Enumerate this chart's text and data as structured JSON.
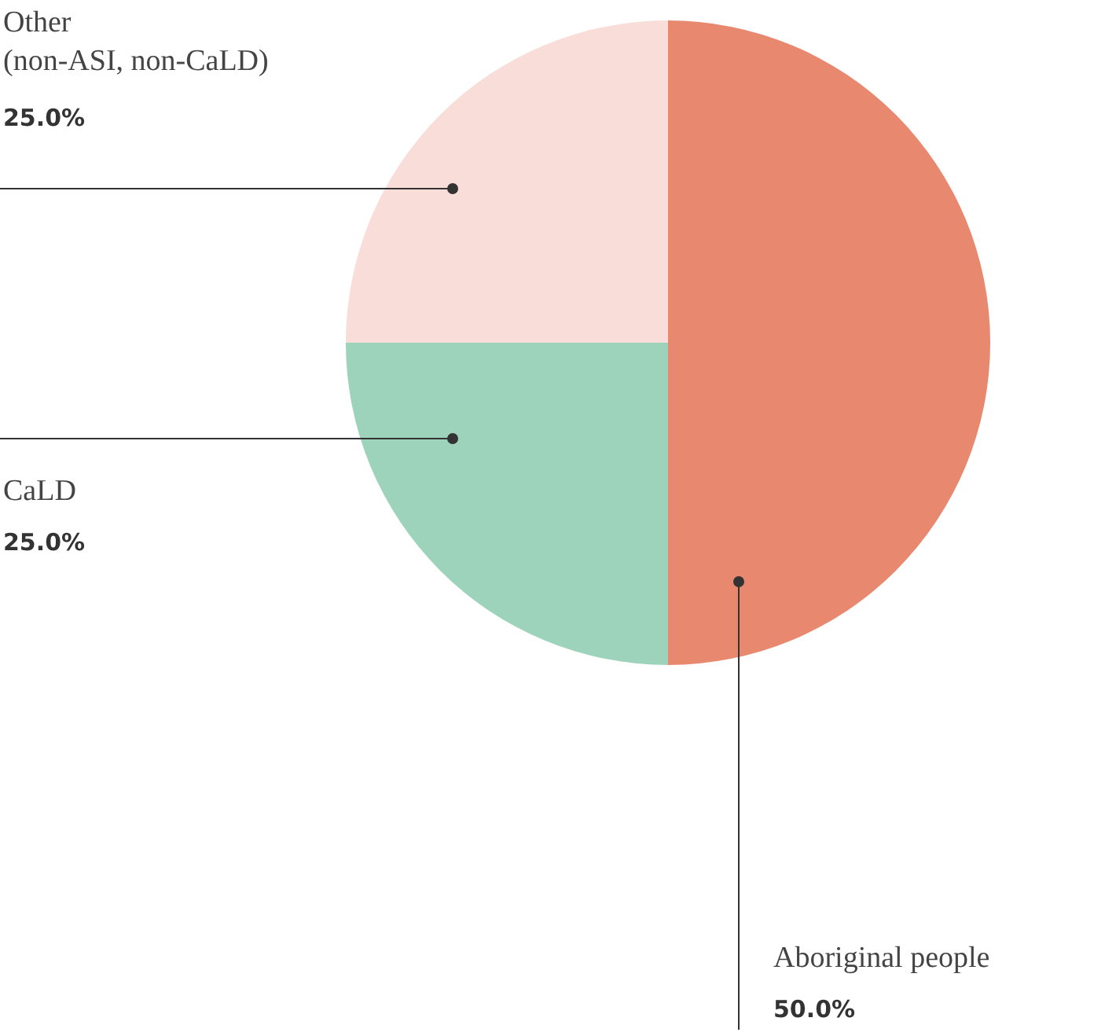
{
  "chart_data": {
    "type": "pie",
    "categories": [
      "Aboriginal people",
      "CaLD",
      "Other\n(non-ASI, non-CaLD)"
    ],
    "values": [
      50.0,
      25.0,
      25.0
    ],
    "value_labels": [
      "50.0%",
      "25.0%",
      "25.0%"
    ],
    "colors": [
      "#e8886f",
      "#9dd3bb",
      "#f9ddd8"
    ],
    "legend": false
  }
}
